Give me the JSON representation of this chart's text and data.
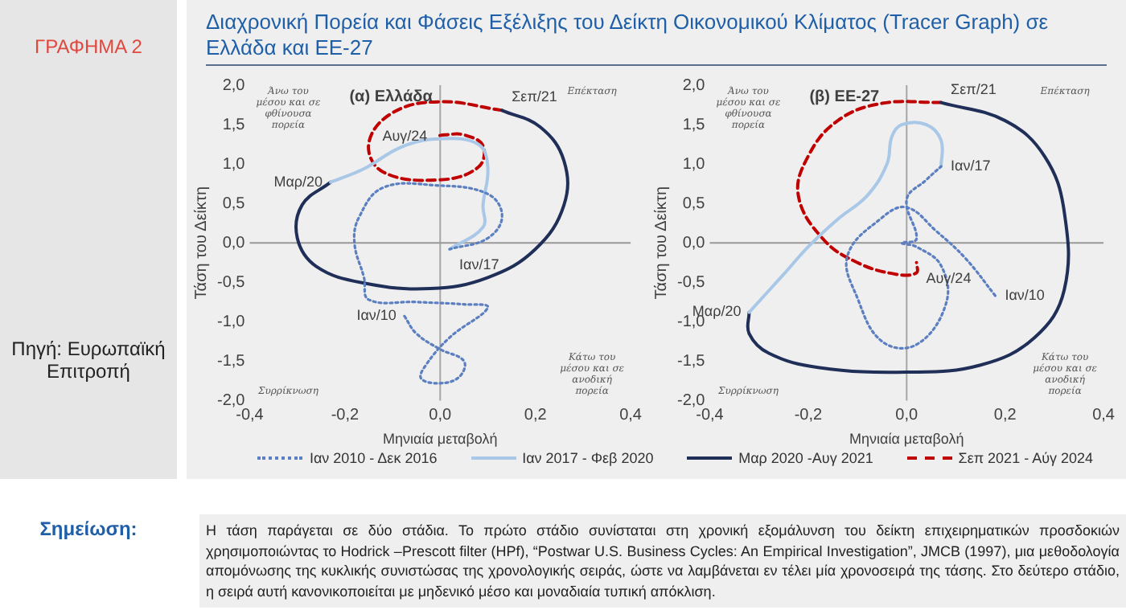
{
  "chart_data": [
    {
      "type": "line",
      "title": "Διαχρονική Πορεία και Φάσεις Εξέλιξης του Δείκτη Οικονομικού Κλίματος (Tracer Graph) σε Ελλάδα και ΕΕ-27",
      "subtitle": "(α) Ελλάδα",
      "xlabel": "Μηνιαία μεταβολή",
      "ylabel": "Τάση του Δείκτη",
      "xlim": [
        -0.4,
        0.4
      ],
      "xticks": [
        {
          "value": -0.4,
          "label": "-0,4"
        },
        {
          "value": -0.2,
          "label": "-0,2"
        },
        {
          "value": 0,
          "label": "0,0"
        },
        {
          "value": 0.2,
          "label": "0,2"
        },
        {
          "value": 0.4,
          "label": "0,4"
        }
      ],
      "ylim": [
        -2,
        2
      ],
      "yticks": [
        {
          "value": -2,
          "label": "-2,0"
        },
        {
          "value": -1.5,
          "label": "-1,5"
        },
        {
          "value": -1,
          "label": "-1,0"
        },
        {
          "value": -0.5,
          "label": "-0,5"
        },
        {
          "value": 0,
          "label": "0,0"
        },
        {
          "value": 0.5,
          "label": "0,5"
        },
        {
          "value": 1,
          "label": "1,0"
        },
        {
          "value": 1.5,
          "label": "1,5"
        },
        {
          "value": 2,
          "label": "2,0"
        }
      ],
      "grid": false,
      "legend": "bottom",
      "marker": "none",
      "ref_lines": [
        {
          "axis": "x",
          "value": 0,
          "color": "#a6a6a6"
        },
        {
          "axis": "y",
          "value": 0,
          "color": "#999999"
        }
      ],
      "series": [
        {
          "name": "Ιαν 2010 - Δεκ 2016",
          "color": "#5b7fc0",
          "line_style": "dotted",
          "x": [
            -0.075,
            -0.05,
            0,
            0.05,
            0.04,
            0,
            -0.04,
            -0.03,
            0.02,
            0.1,
            0.05,
            -0.05,
            -0.15,
            -0.16,
            -0.18,
            -0.17,
            -0.12,
            -0.01,
            0.1,
            0.13,
            0.1,
            0.02
          ],
          "values": [
            -0.93,
            -1.15,
            -1.35,
            -1.5,
            -1.7,
            -1.78,
            -1.72,
            -1.55,
            -1.2,
            -0.82,
            -0.78,
            -0.75,
            -0.72,
            -0.44,
            0,
            0.33,
            0.7,
            0.73,
            0.62,
            0.34,
            0.06,
            -0.08
          ]
        },
        {
          "name": "Ιαν 2017 - Φεβ 2020",
          "color": "#a9c8e8",
          "line_style": "solid",
          "x": [
            0.02,
            0.09,
            0.09,
            0.1,
            0.08,
            0,
            -0.08,
            -0.16,
            -0.23
          ],
          "values": [
            -0.08,
            0.2,
            0.48,
            0.96,
            1.25,
            1.32,
            1.22,
            0.94,
            0.77
          ]
        },
        {
          "name": "Μαρ 2020 -Αυγ 2021",
          "color": "#1f2f57",
          "line_style": "solid",
          "x": [
            -0.23,
            -0.29,
            -0.3,
            -0.26,
            -0.16,
            -0.02,
            0.1,
            0.2,
            0.26,
            0.26,
            0.21,
            0.13
          ],
          "values": [
            0.77,
            0.48,
            0.06,
            -0.3,
            -0.51,
            -0.58,
            -0.44,
            -0.08,
            0.48,
            1.04,
            1.47,
            1.68
          ]
        },
        {
          "name": "Σεπ 2021 - Αύγ 2024",
          "color": "#c00000",
          "line_style": "dashed",
          "x": [
            0.13,
            0,
            -0.1,
            -0.15,
            -0.12,
            0,
            0.08,
            0.09,
            0.05,
            0.01,
            -0.01
          ],
          "values": [
            1.68,
            1.79,
            1.65,
            1.26,
            0.9,
            0.8,
            0.96,
            1.23,
            1.37,
            1.37,
            1.35
          ]
        }
      ],
      "annotations": [
        "Άνω του μέσου και σε φθίνουσα πορεία",
        "Επέκταση",
        "Συρρίκνωση",
        "Κάτω του μέσου και σε ανοδική πορεία",
        {
          "text": "Ιαν/10",
          "x": -0.075,
          "y": -0.93
        },
        {
          "text": "Ιαν/17",
          "x": 0.02,
          "y": -0.08
        },
        {
          "text": "Μαρ/20",
          "x": -0.23,
          "y": 0.77
        },
        {
          "text": "Σεπ/21",
          "x": 0.13,
          "y": 1.68
        },
        {
          "text": "Αυγ/24",
          "x": -0.01,
          "y": 1.35
        },
        "ΓΡΑΦΗΜΑ 2",
        "Πηγή: Ευρωπαϊκή Επιτροπή",
        "Σημείωση:",
        "Η τάση παράγεται σε δύο στάδια. Το πρώτο στάδιο συνίσταται στη χρονική εξομάλυνση του δείκτη επιχειρηματικών προσδοκιών χρησιμοποιώντας το Hodrick –Prescott filter (HPf), “Postwar U.S. Business Cycles: An Empirical Investigation”, JMCB (1997), μια μεθοδολογία απομόνωσης της κυκλικής συνιστώσας της χρονολογικής σειράς, ώστε να λαμβάνεται εν τέλει μία χρονοσειρά της τάσης. Στο δεύτερο στάδιο, η σειρά αυτή κανονικοποιείται με μηδενικό μέσο και μοναδιαία τυπική απόκλιση."
      ]
    },
    {
      "type": "line",
      "subtitle": "(β) ΕΕ-27",
      "xlabel": "Μηνιαία μεταβολή",
      "ylabel": "Τάση του Δείκτη",
      "xlim": [
        -0.4,
        0.4
      ],
      "xticks": [
        {
          "value": -0.4,
          "label": "-0,4"
        },
        {
          "value": -0.2,
          "label": "-0,2"
        },
        {
          "value": 0,
          "label": "0,0"
        },
        {
          "value": 0.2,
          "label": "0,2"
        },
        {
          "value": 0.4,
          "label": "0,4"
        }
      ],
      "ylim": [
        -2,
        2
      ],
      "yticks": [
        {
          "value": -2,
          "label": "-2,0"
        },
        {
          "value": -1.5,
          "label": "-1,5"
        },
        {
          "value": -1,
          "label": "-1,0"
        },
        {
          "value": -0.5,
          "label": "-0,5"
        },
        {
          "value": 0,
          "label": "0,0"
        },
        {
          "value": 0.5,
          "label": "0,5"
        },
        {
          "value": 1,
          "label": "1,0"
        },
        {
          "value": 1.5,
          "label": "1,5"
        },
        {
          "value": 2,
          "label": "2,0"
        }
      ],
      "grid": false,
      "marker": "none",
      "ref_lines": [
        {
          "axis": "x",
          "value": 0,
          "color": "#a6a6a6"
        },
        {
          "axis": "y",
          "value": 0,
          "color": "#999999"
        }
      ],
      "series": [
        {
          "color": "#5b7fc0",
          "line_style": "dotted",
          "x": [
            0.18,
            0.12,
            0.06,
            0,
            -0.05,
            -0.12,
            -0.1,
            -0.05,
            0.02,
            0.08,
            0.07,
            0.02,
            -0.01,
            0.02,
            0,
            0.04,
            0.07
          ],
          "values": [
            -0.67,
            -0.2,
            0.15,
            0.45,
            0.32,
            -0.16,
            -0.7,
            -1.25,
            -1.29,
            -0.77,
            -0.29,
            -0.05,
            0,
            0.05,
            0.55,
            0.8,
            0.97
          ]
        },
        {
          "color": "#a9c8e8",
          "line_style": "solid",
          "x": [
            0.07,
            0.07,
            0.04,
            -0.01,
            -0.03,
            -0.04,
            -0.08,
            -0.14,
            -0.2,
            -0.25,
            -0.32
          ],
          "values": [
            0.97,
            1.3,
            1.5,
            1.5,
            1.35,
            1,
            0.6,
            0.3,
            -0.05,
            -0.4,
            -0.88
          ]
        },
        {
          "color": "#1f2f57",
          "line_style": "solid",
          "x": [
            -0.32,
            -0.32,
            -0.28,
            -0.18,
            0,
            0.15,
            0.26,
            0.32,
            0.32,
            0.28,
            0.2,
            0.07
          ],
          "values": [
            -0.88,
            -1.15,
            -1.4,
            -1.58,
            -1.64,
            -1.55,
            -1.2,
            -0.6,
            0.4,
            1.1,
            1.55,
            1.78
          ]
        },
        {
          "color": "#c00000",
          "line_style": "dashed",
          "x": [
            0.07,
            -0.05,
            -0.14,
            -0.2,
            -0.22,
            -0.17,
            -0.1,
            -0.02,
            0.02,
            0.02
          ],
          "values": [
            1.78,
            1.77,
            1.55,
            1.1,
            0.6,
            0.05,
            -0.25,
            -0.4,
            -0.38,
            -0.25
          ]
        }
      ],
      "annotations": [
        "Άνω του μέσου και σε φθίνουσα πορεία",
        "Επέκταση",
        "Συρρίκνωση",
        "Κάτω του μέσου και σε ανοδική πορεία",
        {
          "text": "Ιαν/10",
          "x": 0.18,
          "y": -0.67
        },
        {
          "text": "Ιαν/17",
          "x": 0.07,
          "y": 0.97
        },
        {
          "text": "Μαρ/20",
          "x": -0.32,
          "y": -0.88
        },
        {
          "text": "Σεπ/21",
          "x": 0.07,
          "y": 1.78
        },
        {
          "text": "Αυγ/24",
          "x": 0.02,
          "y": -0.25
        }
      ]
    }
  ]
}
